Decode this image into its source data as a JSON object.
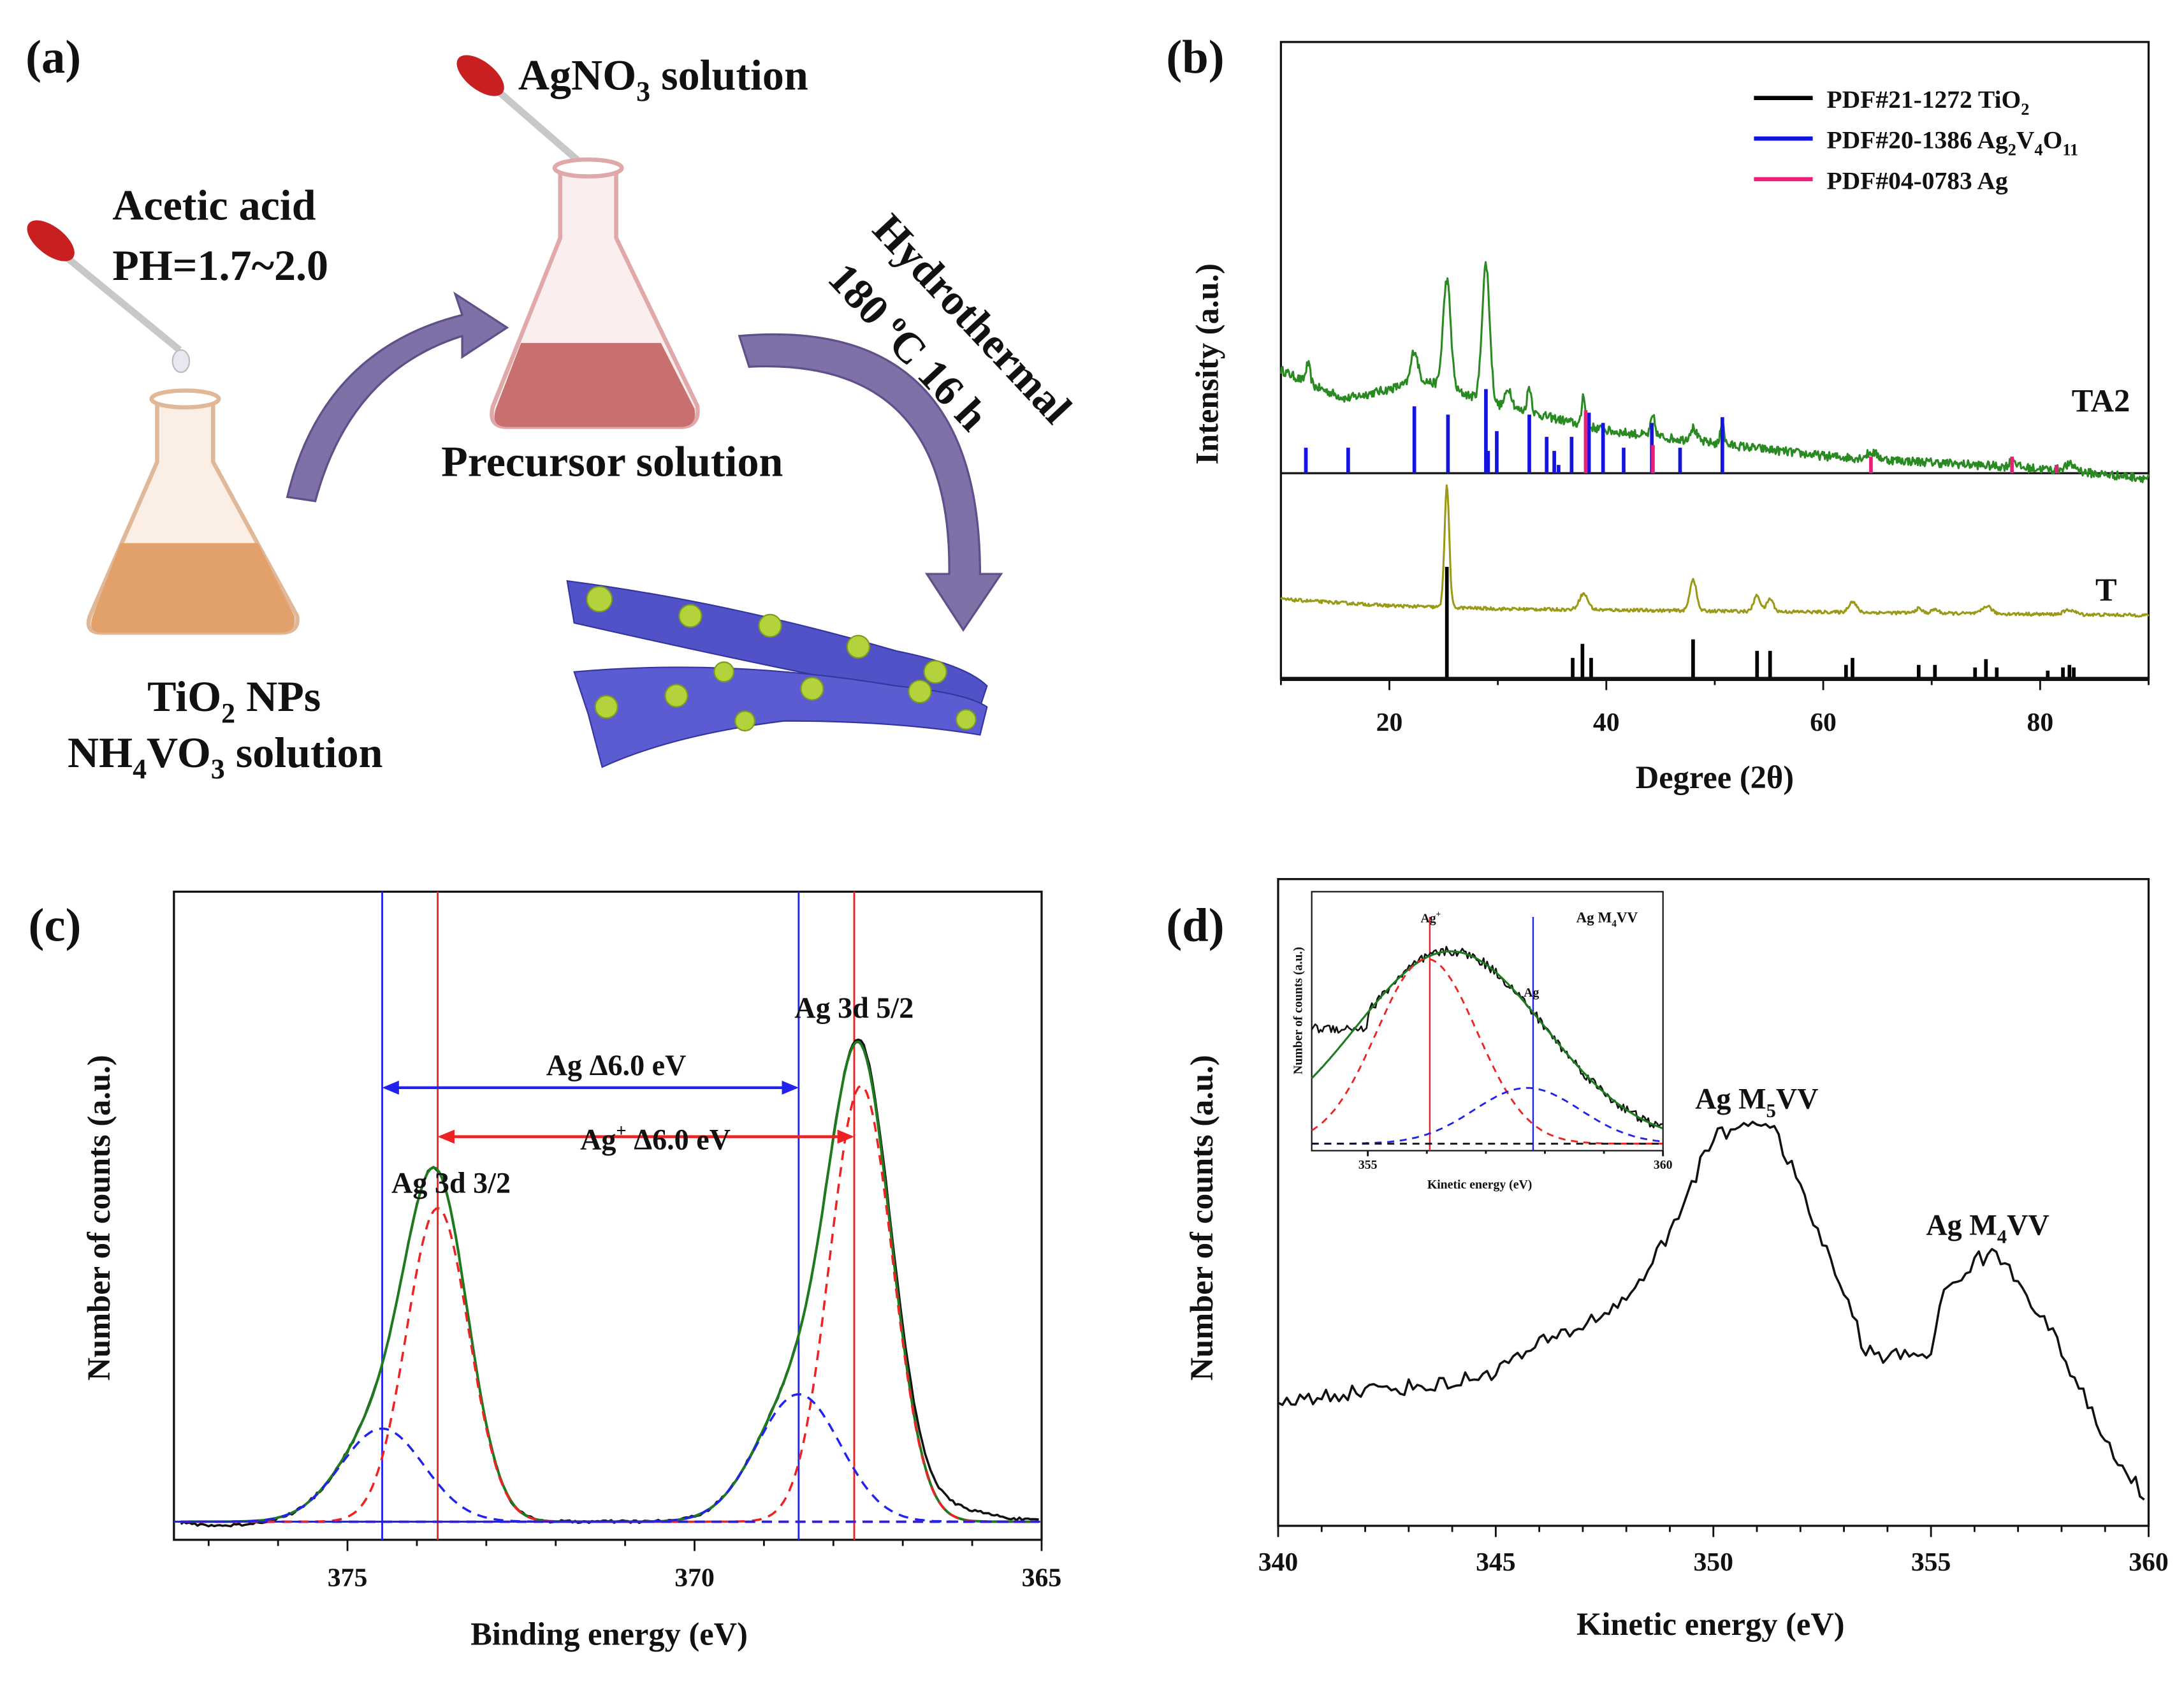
{
  "colors": {
    "ta2": "#2a8a22",
    "t": "#9a9a18",
    "tio2": "#000000",
    "agvo": "#1414e0",
    "ag": "#e8207a",
    "fit": "#1e7a1e",
    "red": "#ee2222",
    "blue": "#2222ee",
    "arrow": "#8070a8",
    "ribbon": "#5252c8",
    "particle": "#b4d23c"
  },
  "panel_a": {
    "label": "(a)",
    "agno3": [
      "AgNO",
      "3",
      " solution"
    ],
    "acetic": "Acetic acid",
    "ph": "PH=1.7~2.0",
    "precursor": "Precursor solution",
    "hydro": "Hydrothermal",
    "cond": [
      "180 ",
      "o",
      "C  16 h"
    ],
    "tio2": [
      "TiO",
      "2",
      " NPs"
    ],
    "nh4vo3": [
      "NH",
      "4",
      "VO",
      "3",
      " solution"
    ]
  },
  "chart_data": [
    {
      "id": "b",
      "type": "line",
      "label": "(b)",
      "xlabel": "Degree (2θ)",
      "ylabel": "Intensity (a.u.)",
      "xlim": [
        10,
        90
      ],
      "ylim": [
        0,
        1
      ],
      "xticks": [
        20,
        40,
        60,
        80
      ],
      "legend_position": "top-right",
      "legend": [
        {
          "parts": [
            "PDF#21-1272  TiO",
            "2",
            ""
          ],
          "color": "#000000"
        },
        {
          "parts": [
            "PDF#20-1386  Ag",
            "2",
            "V",
            "4",
            "O",
            "11"
          ],
          "color": "#1414e0"
        },
        {
          "parts": [
            "PDF#04-0783  Ag"
          ],
          "color": "#e8207a"
        }
      ],
      "series": [
        {
          "name": "TA2",
          "baseline": [
            [
              10,
              0.485
            ],
            [
              13,
              0.46
            ],
            [
              16,
              0.44
            ],
            [
              20,
              0.455
            ],
            [
              23,
              0.47
            ],
            [
              30,
              0.43
            ],
            [
              40,
              0.39
            ],
            [
              50,
              0.37
            ],
            [
              60,
              0.35
            ],
            [
              70,
              0.34
            ],
            [
              80,
              0.33
            ],
            [
              90,
              0.315
            ]
          ],
          "peaks": [
            [
              12.5,
              0.03,
              0.2
            ],
            [
              22.3,
              0.05,
              0.3
            ],
            [
              25.3,
              0.17,
              0.35
            ],
            [
              28.9,
              0.215,
              0.35
            ],
            [
              31,
              0.03,
              0.3
            ],
            [
              32.9,
              0.04,
              0.2
            ],
            [
              37.9,
              0.05,
              0.15
            ],
            [
              44.3,
              0.03,
              0.2
            ],
            [
              48,
              0.02,
              0.3
            ],
            [
              50.7,
              0.04,
              0.15
            ],
            [
              64.5,
              0.01,
              0.5
            ],
            [
              77.5,
              0.012,
              0.3
            ],
            [
              82.8,
              0.01,
              0.6
            ]
          ],
          "noise": 0.007
        },
        {
          "name": "T",
          "baseline": [
            [
              10,
              0.125
            ],
            [
              20,
              0.115
            ],
            [
              30,
              0.11
            ],
            [
              90,
              0.1
            ]
          ],
          "peaks": [
            [
              25.3,
              0.19,
              0.22
            ],
            [
              37.9,
              0.025,
              0.4
            ],
            [
              48,
              0.05,
              0.3
            ],
            [
              53.9,
              0.025,
              0.3
            ],
            [
              55.1,
              0.02,
              0.3
            ],
            [
              62.7,
              0.017,
              0.35
            ],
            [
              68.8,
              0.007,
              0.3
            ],
            [
              70.3,
              0.006,
              0.3
            ],
            [
              75.1,
              0.012,
              0.4
            ],
            [
              82.7,
              0.007,
              0.5
            ]
          ],
          "noise": 0.0025
        }
      ],
      "references": {
        "TiO2": {
          "base": 0,
          "sticks": [
            [
              25.3,
              0.176
            ],
            [
              36.9,
              0.033
            ],
            [
              37.8,
              0.055
            ],
            [
              38.6,
              0.033
            ],
            [
              48.0,
              0.062
            ],
            [
              53.9,
              0.044
            ],
            [
              55.1,
              0.044
            ],
            [
              62.1,
              0.022
            ],
            [
              62.7,
              0.033
            ],
            [
              68.8,
              0.022
            ],
            [
              70.3,
              0.022
            ],
            [
              74.0,
              0.018
            ],
            [
              75.0,
              0.031
            ],
            [
              76.0,
              0.018
            ],
            [
              80.7,
              0.013
            ],
            [
              82.1,
              0.018
            ],
            [
              82.7,
              0.022
            ],
            [
              83.1,
              0.018
            ]
          ]
        },
        "Ag2V4O11": {
          "base": 0.323,
          "sticks": [
            [
              12.3,
              0.04
            ],
            [
              16.2,
              0.04
            ],
            [
              22.3,
              0.105
            ],
            [
              25.4,
              0.092
            ],
            [
              28.9,
              0.132
            ],
            [
              29.1,
              0.035
            ],
            [
              29.9,
              0.066
            ],
            [
              32.9,
              0.092
            ],
            [
              34.5,
              0.057
            ],
            [
              35.2,
              0.035
            ],
            [
              35.6,
              0.013
            ],
            [
              36.8,
              0.057
            ],
            [
              38.4,
              0.095
            ],
            [
              39.7,
              0.079
            ],
            [
              41.6,
              0.04
            ],
            [
              44.2,
              0.079
            ],
            [
              46.8,
              0.04
            ],
            [
              50.7,
              0.088
            ]
          ]
        },
        "Ag": {
          "base": 0.323,
          "sticks": [
            [
              38.1,
              0.099
            ],
            [
              44.3,
              0.044
            ],
            [
              64.4,
              0.026
            ],
            [
              77.4,
              0.026
            ],
            [
              81.5,
              0.013
            ]
          ]
        }
      },
      "divider": 0.323,
      "annotations": [
        "TA2",
        "T"
      ]
    },
    {
      "id": "c",
      "type": "line",
      "label": "(c)",
      "xlabel": "Binding energy (eV)",
      "ylabel": "Number of counts (a.u.)",
      "xlim": [
        377.5,
        365
      ],
      "ylim": [
        -0.037,
        1.286
      ],
      "xticks": [
        375,
        370,
        365
      ],
      "components": [
        {
          "name": "Ag+ 3d5/2",
          "center": 367.6,
          "amp": 0.89,
          "sigma": 0.45,
          "color": "red"
        },
        {
          "name": "Ag 3d5/2",
          "center": 368.5,
          "amp": 0.26,
          "sigma": 0.6,
          "color": "blue"
        },
        {
          "name": "Ag+ 3d3/2",
          "center": 373.7,
          "amp": 0.64,
          "sigma": 0.45,
          "color": "red"
        },
        {
          "name": "Ag 3d3/2",
          "center": 374.5,
          "amp": 0.19,
          "sigma": 0.6,
          "color": "blue"
        }
      ],
      "vlines": [
        {
          "x": 374.5,
          "color": "blue"
        },
        {
          "x": 373.7,
          "color": "red"
        },
        {
          "x": 368.5,
          "color": "blue"
        },
        {
          "x": 367.7,
          "color": "red"
        }
      ],
      "labels": {
        "d32": "Ag 3d 3/2",
        "d52": "Ag 3d 5/2",
        "ag_delta": "Ag  Δ6.0 eV",
        "agp": "Ag",
        "agp_sup": "+",
        "agp_delta": "  Δ6.0 eV"
      }
    },
    {
      "id": "d",
      "type": "line",
      "label": "(d)",
      "xlabel": "Kinetic energy (eV)",
      "ylabel": "Number of counts (a.u.)",
      "xlim": [
        340,
        360
      ],
      "ylim": [
        0,
        1
      ],
      "xticks": [
        340,
        345,
        350,
        355,
        360
      ],
      "series": [
        {
          "name": "Ag MVV",
          "points": [
            [
              340,
              0.19
            ],
            [
              342,
              0.21
            ],
            [
              344,
              0.22
            ],
            [
              345,
              0.24
            ],
            [
              346,
              0.28
            ],
            [
              347,
              0.31
            ],
            [
              348,
              0.35
            ],
            [
              349,
              0.45
            ],
            [
              349.5,
              0.53
            ],
            [
              350,
              0.6
            ],
            [
              351,
              0.63
            ],
            [
              351.5,
              0.6
            ],
            [
              352,
              0.52
            ],
            [
              353,
              0.36
            ],
            [
              353.5,
              0.27
            ],
            [
              354,
              0.26
            ],
            [
              355,
              0.27
            ],
            [
              355.3,
              0.36
            ],
            [
              356,
              0.41
            ],
            [
              356.5,
              0.42
            ],
            [
              357,
              0.38
            ],
            [
              357.5,
              0.33
            ],
            [
              358,
              0.27
            ],
            [
              359,
              0.13
            ],
            [
              359.5,
              0.08
            ],
            [
              360,
              0.04
            ]
          ]
        }
      ],
      "labels": {
        "m5": [
          "Ag M",
          "5",
          "VV"
        ],
        "m4": [
          "Ag M",
          "4",
          "VV"
        ]
      },
      "inset": {
        "xlabel": "Kinetic energy (eV)",
        "ylabel": "Number of counts (a.u.)",
        "xlim": [
          354.05,
          360
        ],
        "ylim": [
          -0.036,
          1.31
        ],
        "xticks": [
          355,
          360
        ],
        "title": [
          "Ag M",
          "4",
          "VV"
        ],
        "agp": "Ag",
        "agp_sup": "+",
        "ag": "Ag",
        "vlines": [
          {
            "x": 356.05,
            "color": "red"
          },
          {
            "x": 357.8,
            "color": "blue"
          }
        ],
        "fit": {
          "center": 356.4,
          "amp": 1.0,
          "sigma": 1.6
        },
        "red": {
          "center": 356.0,
          "amp": 0.96,
          "sigma": 0.85
        },
        "blue": {
          "center": 357.7,
          "amp": 0.29,
          "sigma": 0.9
        }
      }
    }
  ]
}
